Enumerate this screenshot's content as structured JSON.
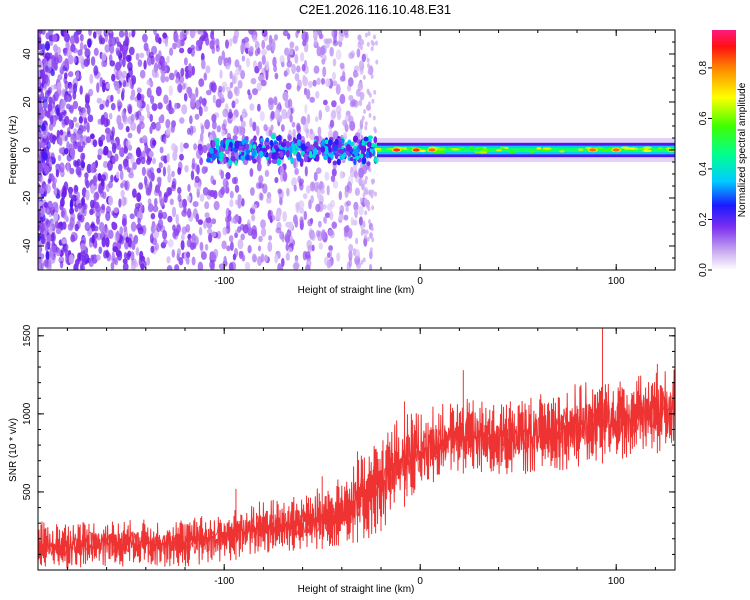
{
  "title": "C2E1.2026.116.10.48.E31",
  "chart_data": [
    {
      "type": "heatmap",
      "title": "C2E1.2026.116.10.48.E31",
      "xlabel": "Height of straight line (km)",
      "ylabel": "Frequency (Hz)",
      "xlim": [
        -195,
        130
      ],
      "ylim": [
        -50,
        50
      ],
      "xticks": [
        {
          "value": -100,
          "label": "-100"
        },
        {
          "value": 0,
          "label": "0"
        },
        {
          "value": 100,
          "label": "100"
        }
      ],
      "yticks": [
        {
          "value": 40,
          "label": "40"
        },
        {
          "value": 20,
          "label": "20"
        },
        {
          "value": 0,
          "label": "0"
        },
        {
          "value": -20,
          "label": "-20"
        },
        {
          "value": -40,
          "label": "-40"
        }
      ],
      "colorbar": {
        "label": "Normalized spectral amplitude",
        "range": [
          0.0,
          0.95
        ],
        "ticks": [
          {
            "value": 0.0,
            "label": "0.0"
          },
          {
            "value": 0.2,
            "label": "0.2"
          },
          {
            "value": 0.4,
            "label": "0.4"
          },
          {
            "value": 0.6,
            "label": "0.6"
          },
          {
            "value": 0.8,
            "label": "0.8"
          }
        ]
      },
      "regions": [
        {
          "name": "broadband noise",
          "x_range": [
            -195,
            -25
          ],
          "freq_range": [
            -50,
            50
          ],
          "amplitude": 0.05
        },
        {
          "name": "onset band",
          "x_range": [
            -108,
            -22
          ],
          "freq_range": [
            -6,
            6
          ],
          "amplitude": 0.25
        },
        {
          "name": "narrow carrier line",
          "x_range": [
            -22,
            130
          ],
          "freq_range": [
            -3,
            3
          ],
          "amplitude": 0.45
        },
        {
          "name": "peak",
          "x": -12,
          "freq": 0,
          "amplitude": 0.9
        },
        {
          "name": "peak",
          "x": -2,
          "freq": 0,
          "amplitude": 0.9
        },
        {
          "name": "peak",
          "x": 6,
          "freq": 0,
          "amplitude": 0.85
        },
        {
          "name": "peak",
          "x": 88,
          "freq": 0,
          "amplitude": 0.85
        },
        {
          "name": "peak",
          "x": 100,
          "freq": 0,
          "amplitude": 0.85
        }
      ]
    },
    {
      "type": "line",
      "xlabel": "Height of straight line (km)",
      "ylabel": "SNR (10 * v/v)",
      "xlim": [
        -195,
        130
      ],
      "ylim": [
        0,
        1550
      ],
      "color": "#ee3333",
      "xticks": [
        {
          "value": -100,
          "label": "-100"
        },
        {
          "value": 0,
          "label": "0"
        },
        {
          "value": 100,
          "label": "100"
        }
      ],
      "yticks": [
        {
          "value": 500,
          "label": "500"
        },
        {
          "value": 1000,
          "label": "1000"
        },
        {
          "value": 1500,
          "label": "1500"
        }
      ],
      "envelope": [
        {
          "x": -195,
          "low": 0,
          "high": 310
        },
        {
          "x": -160,
          "low": 20,
          "high": 320
        },
        {
          "x": -120,
          "low": 20,
          "high": 330
        },
        {
          "x": -100,
          "low": 50,
          "high": 370
        },
        {
          "x": -80,
          "low": 100,
          "high": 450
        },
        {
          "x": -60,
          "low": 120,
          "high": 480
        },
        {
          "x": -40,
          "low": 150,
          "high": 600
        },
        {
          "x": -25,
          "low": 200,
          "high": 800
        },
        {
          "x": -15,
          "low": 300,
          "high": 950
        },
        {
          "x": -5,
          "low": 450,
          "high": 1020
        },
        {
          "x": 10,
          "low": 580,
          "high": 1060
        },
        {
          "x": 20,
          "low": 620,
          "high": 1100
        },
        {
          "x": 40,
          "low": 600,
          "high": 1080
        },
        {
          "x": 60,
          "low": 620,
          "high": 1130
        },
        {
          "x": 80,
          "low": 650,
          "high": 1200
        },
        {
          "x": 100,
          "low": 700,
          "high": 1220
        },
        {
          "x": 115,
          "low": 740,
          "high": 1260
        },
        {
          "x": 130,
          "low": 760,
          "high": 1300
        }
      ],
      "spikes": [
        {
          "x": -94,
          "y": 520
        },
        {
          "x": -50,
          "y": 600
        },
        {
          "x": -32,
          "y": 760
        },
        {
          "x": -20,
          "y": 640
        },
        {
          "x": -8,
          "y": 1080
        },
        {
          "x": 22,
          "y": 1280
        },
        {
          "x": 93,
          "y": 1560
        },
        {
          "x": 121,
          "y": 1320
        }
      ]
    }
  ]
}
